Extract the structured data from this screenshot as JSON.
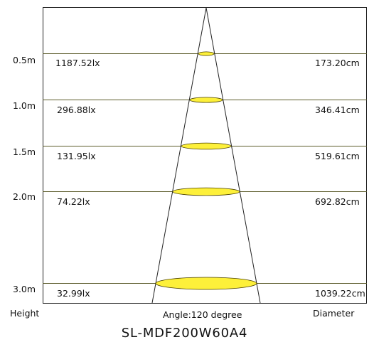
{
  "model": "SL-MDF200W60A4",
  "footer": {
    "height_label": "Height",
    "angle_label": "Angle:120 degree",
    "diameter_label": "Diameter"
  },
  "rows": [
    {
      "height": "0.5m",
      "lux": "1187.52lx",
      "diameter": "173.20cm"
    },
    {
      "height": "1.0m",
      "lux": "296.88lx",
      "diameter": "346.41cm"
    },
    {
      "height": "1.5m",
      "lux": "131.95lx",
      "diameter": "519.61cm"
    },
    {
      "height": "2.0m",
      "lux": "74.22lx",
      "diameter": "692.82cm"
    },
    {
      "height": "3.0m",
      "lux": "32.99lx",
      "diameter": "1039.22cm"
    }
  ],
  "colors": {
    "beam_fill": "#fdf03a",
    "beam_stroke": "#4a4000",
    "line": "#5b5b2a",
    "frame": "#222222",
    "text": "#111111"
  }
}
